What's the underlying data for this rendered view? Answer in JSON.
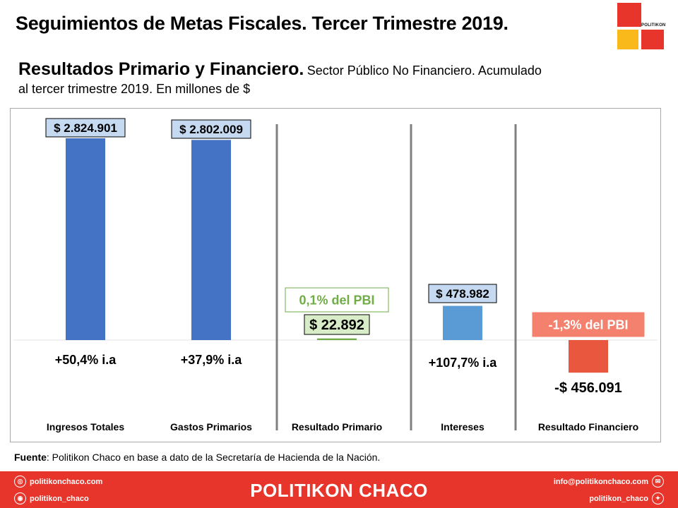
{
  "header": {
    "title": "Seguimientos de Metas Fiscales. Tercer Trimestre 2019.",
    "logo_text": "POLITIKON"
  },
  "subtitle": {
    "main": "Resultados Primario y Financiero.",
    "detail": "Sector Público No Financiero. Acumulado",
    "line2": "al tercer trimestre 2019. En millones de $"
  },
  "chart_data": {
    "type": "bar",
    "categories": [
      "Ingresos Totales",
      "Gastos Primarios",
      "Resultado Primario",
      "Intereses",
      "Resultado Financiero"
    ],
    "values": [
      2824901,
      2802009,
      22892,
      478982,
      -456091
    ],
    "value_labels": [
      "$ 2.824.901",
      "$ 2.802.009",
      "$ 22.892",
      "$ 478.982",
      "-$ 456.091"
    ],
    "change_labels": [
      "+50,4% i.a",
      "+37,9% i.a",
      "",
      "+107,7% i.a",
      ""
    ],
    "pbi_labels": [
      "",
      "",
      "0,1% del PBI",
      "",
      "-1,3% del PBI"
    ],
    "colors": [
      "#4472c4",
      "#4472c4",
      "#70ad47",
      "#5b9bd5",
      "#e9573f"
    ],
    "ylim": [
      -600000,
      2900000
    ],
    "grid": false
  },
  "source": {
    "label": "Fuente",
    "text": ":  Politikon  Chaco  en  base  a  dato  de  la  Secretaría  de  Hacienda  de  la  Nación."
  },
  "footer": {
    "brand": "POLITIKON CHACO",
    "website": "politikonchaco.com",
    "instagram": "politikon_chaco",
    "email": "info@politikonchaco.com",
    "twitter": "politikon_chaco"
  }
}
